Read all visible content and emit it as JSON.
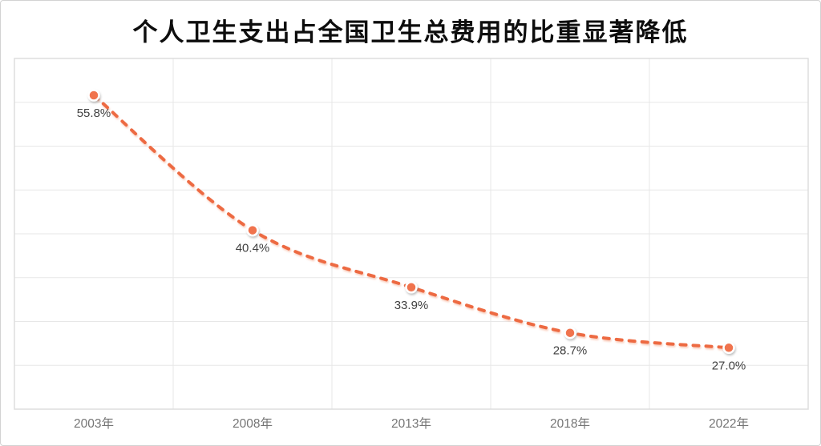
{
  "header": {
    "title": "个人卫生支出占全国卫生总费用的比重显著降低"
  },
  "chart_data": {
    "type": "line",
    "title": "个人卫生支出占全国卫生总费用的比重显著降低",
    "categories": [
      "2003年",
      "2008年",
      "2013年",
      "2018年",
      "2022年"
    ],
    "series": [
      {
        "values": [
          55.8,
          40.4,
          33.9,
          28.7,
          27.0
        ],
        "labels": [
          "55.8%",
          "40.4%",
          "33.9%",
          "28.7%",
          "27.0%"
        ]
      }
    ],
    "xlabel": "",
    "ylabel": "",
    "ylim": [
      20,
      60
    ],
    "y_gridline_step": 5,
    "grid": true,
    "legend_position": "none",
    "line_style": "dashed",
    "smooth": true,
    "data_labels_position": "below",
    "colors": {
      "line": "#ED6B43",
      "line_shadow": "#F5A486",
      "marker_fill": "#F0734E",
      "marker_ring": "#FFFFFF",
      "data_label": "#404040",
      "axis_label": "#757575",
      "gridline": "#E7E7E7",
      "plot_border": "#DDDDDD",
      "title_color": "#0D0D0D",
      "background": "#FFFFFF"
    }
  }
}
